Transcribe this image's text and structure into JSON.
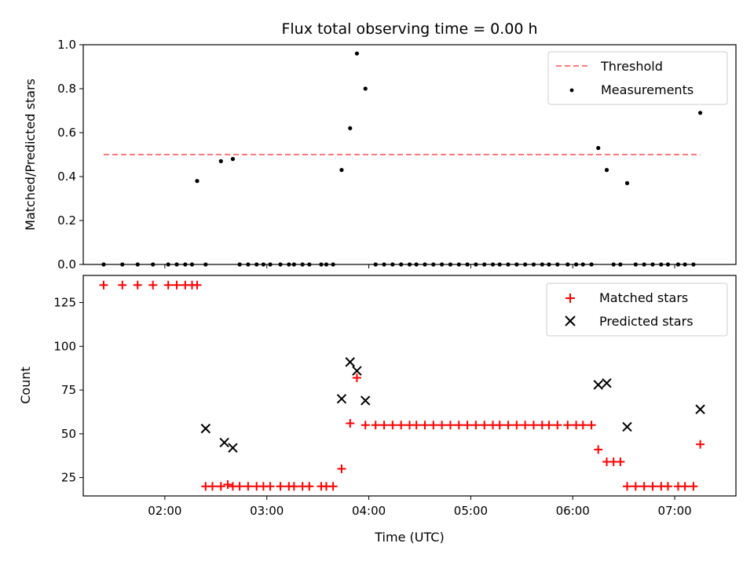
{
  "figure": {
    "title": "Flux total observing time = 0.00 h"
  },
  "chart_data": [
    {
      "type": "scatter",
      "title": "Flux total observing time = 0.00 h",
      "xlabel": "",
      "ylabel": "Matched/Predicted stars",
      "x_unit": "time (UTC)",
      "xlim": [
        "01:12",
        "07:36"
      ],
      "ylim": [
        0,
        1.0
      ],
      "y_ticks": [
        0.0,
        0.2,
        0.4,
        0.6,
        0.8,
        1.0
      ],
      "y_tick_labels": [
        "0.0",
        "0.2",
        "0.4",
        "0.6",
        "0.8",
        "1.0"
      ],
      "grid": false,
      "legend_position": "top-right",
      "legend": [
        "Threshold",
        "Measurements"
      ],
      "series": [
        {
          "name": "Threshold",
          "kind": "dashed-line",
          "color": "#ff7b7b",
          "x": [
            "01:24",
            "07:15"
          ],
          "y": [
            0.5,
            0.5
          ]
        },
        {
          "name": "Measurements",
          "kind": "points",
          "color": "#000000",
          "x": [
            "01:24",
            "01:35",
            "01:44",
            "01:53",
            "02:02",
            "02:07",
            "02:12",
            "02:16",
            "02:19",
            "02:24",
            "02:33",
            "02:40",
            "02:44",
            "02:49",
            "02:54",
            "02:58",
            "03:02",
            "03:08",
            "03:13",
            "03:16",
            "03:21",
            "03:25",
            "03:32",
            "03:35",
            "03:39",
            "03:44",
            "03:49",
            "03:53",
            "03:58",
            "04:04",
            "04:09",
            "04:14",
            "04:19",
            "04:24",
            "04:28",
            "04:33",
            "04:38",
            "04:43",
            "04:48",
            "04:53",
            "04:58",
            "05:03",
            "05:08",
            "05:13",
            "05:17",
            "05:22",
            "05:27",
            "05:32",
            "05:37",
            "05:42",
            "05:46",
            "05:51",
            "05:57",
            "06:02",
            "06:06",
            "06:11",
            "06:15",
            "06:20",
            "06:24",
            "06:28",
            "06:32",
            "06:37",
            "06:42",
            "06:47",
            "06:52",
            "06:56",
            "07:02",
            "07:06",
            "07:11",
            "07:15"
          ],
          "y": [
            0,
            0,
            0,
            0,
            0,
            0,
            0,
            0,
            0.38,
            0,
            0.47,
            0.48,
            0,
            0,
            0,
            0,
            0,
            0,
            0,
            0,
            0,
            0,
            0,
            0,
            0,
            0.43,
            0.62,
            0.96,
            0.8,
            0,
            0,
            0,
            0,
            0,
            0,
            0,
            0,
            0,
            0,
            0,
            0,
            0,
            0,
            0,
            0,
            0,
            0,
            0,
            0,
            0,
            0,
            0,
            0,
            0,
            0,
            0,
            0.53,
            0.43,
            0,
            0,
            0.37,
            0,
            0,
            0,
            0,
            0,
            0,
            0,
            0,
            0.69
          ]
        }
      ]
    },
    {
      "type": "scatter",
      "title": "",
      "xlabel": "Time (UTC)",
      "ylabel": "Count",
      "x_unit": "time (UTC)",
      "xlim": [
        "01:12",
        "07:36"
      ],
      "ylim": [
        14.5,
        140.5
      ],
      "y_ticks": [
        25,
        50,
        75,
        100,
        125
      ],
      "y_tick_labels": [
        "25",
        "50",
        "75",
        "100",
        "125"
      ],
      "x_ticks": [
        "02:00",
        "03:00",
        "04:00",
        "05:00",
        "06:00",
        "07:00"
      ],
      "x_tick_labels": [
        "02:00",
        "03:00",
        "04:00",
        "05:00",
        "06:00",
        "07:00"
      ],
      "grid": false,
      "legend_position": "top-right",
      "legend": [
        "Matched stars",
        "Predicted stars"
      ],
      "series": [
        {
          "name": "Matched stars",
          "marker": "plus",
          "color": "#ff0000",
          "x": [
            "01:24",
            "01:35",
            "01:44",
            "01:53",
            "02:02",
            "02:07",
            "02:12",
            "02:16",
            "02:19",
            "02:24",
            "02:28",
            "02:33",
            "02:37",
            "02:40",
            "02:44",
            "02:49",
            "02:54",
            "02:58",
            "03:02",
            "03:08",
            "03:13",
            "03:16",
            "03:21",
            "03:25",
            "03:32",
            "03:35",
            "03:39",
            "03:44",
            "03:49",
            "03:53",
            "03:58",
            "04:04",
            "04:09",
            "04:14",
            "04:19",
            "04:24",
            "04:28",
            "04:33",
            "04:38",
            "04:43",
            "04:48",
            "04:53",
            "04:58",
            "05:03",
            "05:08",
            "05:13",
            "05:17",
            "05:22",
            "05:27",
            "05:32",
            "05:37",
            "05:42",
            "05:46",
            "05:51",
            "05:57",
            "06:02",
            "06:06",
            "06:11",
            "06:15",
            "06:20",
            "06:24",
            "06:28",
            "06:32",
            "06:37",
            "06:42",
            "06:47",
            "06:52",
            "06:56",
            "07:02",
            "07:06",
            "07:11",
            "07:15"
          ],
          "y": [
            135,
            135,
            135,
            135,
            135,
            135,
            135,
            135,
            135,
            20,
            20,
            20,
            21,
            20,
            20,
            20,
            20,
            20,
            20,
            20,
            20,
            20,
            20,
            20,
            20,
            20,
            20,
            30,
            56,
            82,
            55,
            55,
            55,
            55,
            55,
            55,
            55,
            55,
            55,
            55,
            55,
            55,
            55,
            55,
            55,
            55,
            55,
            55,
            55,
            55,
            55,
            55,
            55,
            55,
            55,
            55,
            55,
            55,
            41,
            34,
            34,
            34,
            20,
            20,
            20,
            20,
            20,
            20,
            20,
            20,
            20,
            44
          ]
        },
        {
          "name": "Predicted stars",
          "marker": "x",
          "color": "#000000",
          "x": [
            "02:24",
            "02:35",
            "02:40",
            "03:44",
            "03:49",
            "03:53",
            "03:58",
            "06:15",
            "06:20",
            "06:32",
            "07:15"
          ],
          "y": [
            53,
            45,
            42,
            70,
            91,
            86,
            69,
            78,
            79,
            54,
            64
          ]
        }
      ]
    }
  ]
}
